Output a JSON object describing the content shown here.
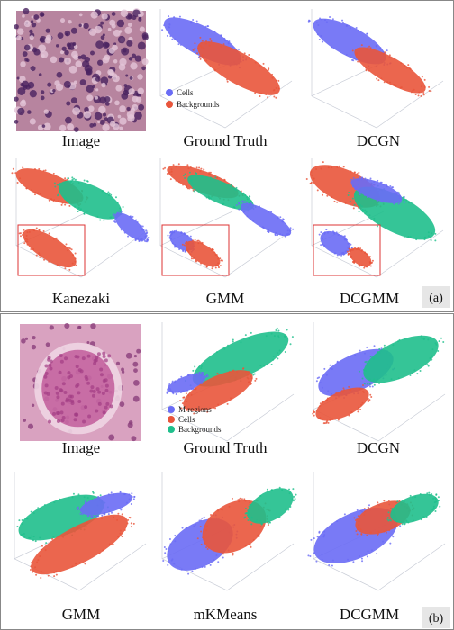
{
  "panel_a": {
    "label": "(a)",
    "legend": [
      "Cells",
      "Backgrounds"
    ],
    "captions": [
      "Image",
      "Ground Truth",
      "DCGN",
      "Kanezaki",
      "GMM",
      "DCGMM"
    ]
  },
  "panel_b": {
    "label": "(b)",
    "legend": [
      "M regions",
      "Cells",
      "Backgrounds"
    ],
    "captions": [
      "Image",
      "Ground Truth",
      "DCGN",
      "GMM",
      "mKMeans",
      "DCGMM"
    ]
  }
}
